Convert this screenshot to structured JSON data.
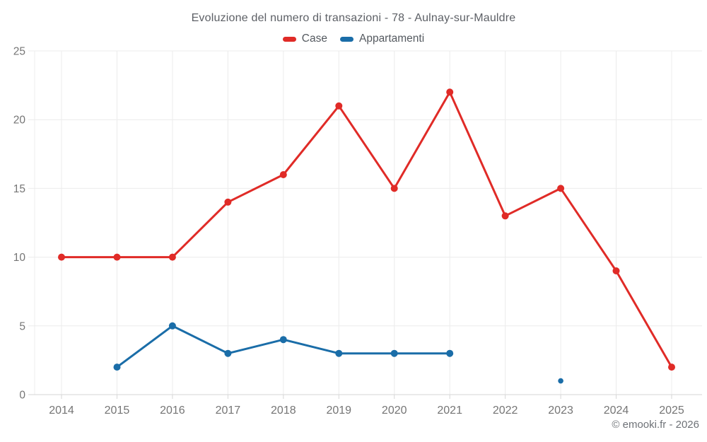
{
  "title": "Evoluzione del numero di transazioni - 78 - Aulnay-sur-Mauldre",
  "legend": {
    "items": [
      {
        "label": "Case",
        "color": "#e02b27"
      },
      {
        "label": "Appartamenti",
        "color": "#1a6da8"
      }
    ]
  },
  "footer": {
    "credit": "© emooki.fr - 2026"
  },
  "colors": {
    "case_red": "#e02b27",
    "appartamenti_blue": "#1a6da8",
    "grid": "#ececec",
    "axis_line": "#d6d6d6",
    "tick_label": "#757575",
    "title_text": "#5d6066"
  },
  "chart_data": {
    "type": "line",
    "title": "Evoluzione del numero di transazioni - 78 - Aulnay-sur-Mauldre",
    "x": [
      2014,
      2015,
      2016,
      2017,
      2018,
      2019,
      2020,
      2021,
      2022,
      2023,
      2024,
      2025
    ],
    "series": [
      {
        "name": "Case",
        "color": "#e02b27",
        "values": [
          10,
          10,
          10,
          14,
          16,
          21,
          15,
          22,
          13,
          15,
          9,
          2
        ]
      },
      {
        "name": "Appartamenti",
        "color": "#1a6da8",
        "values": [
          null,
          2,
          5,
          3,
          4,
          3,
          3,
          3,
          null,
          1,
          null,
          null
        ]
      }
    ],
    "xlabel": "",
    "ylabel": "",
    "ylim": [
      0,
      25
    ],
    "yticks": [
      0,
      5,
      10,
      15,
      20,
      25
    ],
    "grid": true,
    "legend_position": "top"
  }
}
